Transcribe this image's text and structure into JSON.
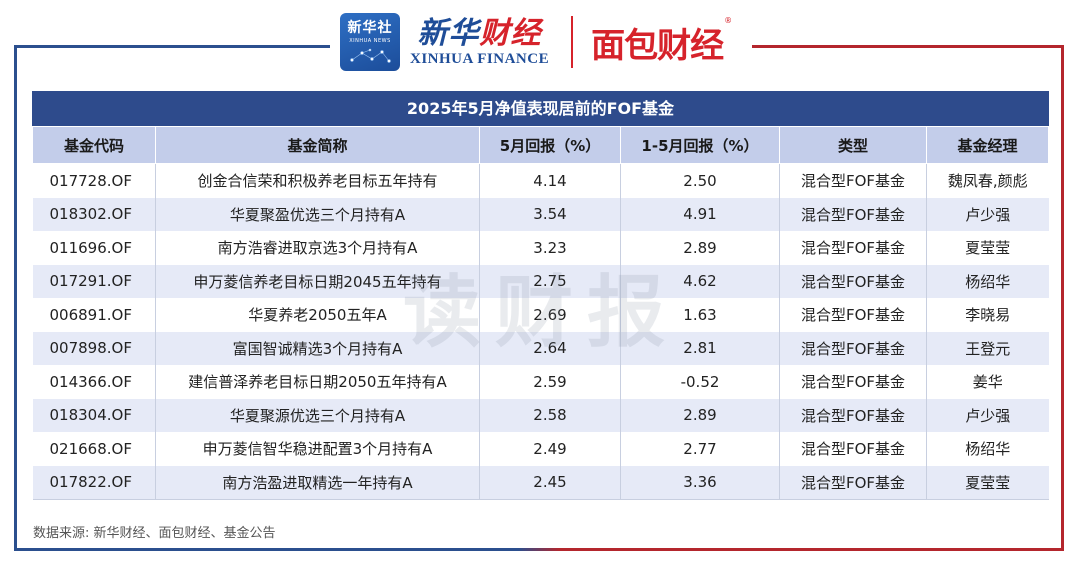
{
  "header": {
    "xinhua_emblem_zh": "新华社",
    "xinhua_emblem_en": "XINHUA NEWS",
    "xinhua_finance_zh_part1": "新华",
    "xinhua_finance_zh_part2": "财经",
    "xinhua_finance_en": "XINHUA FINANCE",
    "mianbao_logo": "面包财经",
    "mianbao_registered": "®"
  },
  "table": {
    "title": "2025年5月净值表现居前的FOF基金",
    "columns": [
      "基金代码",
      "基金简称",
      "5月回报（%）",
      "1-5月回报（%）",
      "类型",
      "基金经理"
    ],
    "rows": [
      [
        "017728.OF",
        "创金合信荣和积极养老目标五年持有",
        "4.14",
        "2.50",
        "混合型FOF基金",
        "魏凤春,颜彪"
      ],
      [
        "018302.OF",
        "华夏聚盈优选三个月持有A",
        "3.54",
        "4.91",
        "混合型FOF基金",
        "卢少强"
      ],
      [
        "011696.OF",
        "南方浩睿进取京选3个月持有A",
        "3.23",
        "2.89",
        "混合型FOF基金",
        "夏莹莹"
      ],
      [
        "017291.OF",
        "申万菱信养老目标日期2045五年持有",
        "2.75",
        "4.62",
        "混合型FOF基金",
        "杨绍华"
      ],
      [
        "006891.OF",
        "华夏养老2050五年A",
        "2.69",
        "1.63",
        "混合型FOF基金",
        "李晓易"
      ],
      [
        "007898.OF",
        "富国智诚精选3个月持有A",
        "2.64",
        "2.81",
        "混合型FOF基金",
        "王登元"
      ],
      [
        "014366.OF",
        "建信普泽养老目标日期2050五年持有A",
        "2.59",
        "-0.52",
        "混合型FOF基金",
        "姜华"
      ],
      [
        "018304.OF",
        "华夏聚源优选三个月持有A",
        "2.58",
        "2.89",
        "混合型FOF基金",
        "卢少强"
      ],
      [
        "021668.OF",
        "申万菱信智华稳进配置3个月持有A",
        "2.49",
        "2.77",
        "混合型FOF基金",
        "杨绍华"
      ],
      [
        "017822.OF",
        "南方浩盈进取精选一年持有A",
        "2.45",
        "3.36",
        "混合型FOF基金",
        "夏莹莹"
      ]
    ]
  },
  "watermark": "读财报",
  "source": "数据来源: 新华财经、面包财经、基金公告",
  "colors": {
    "title_bg": "#2e4b8c",
    "header_bg": "#c3cdea",
    "stripe_bg": "#e6eaf7",
    "xinhua_blue": "#1f4d98",
    "brand_red": "#d6232b"
  }
}
